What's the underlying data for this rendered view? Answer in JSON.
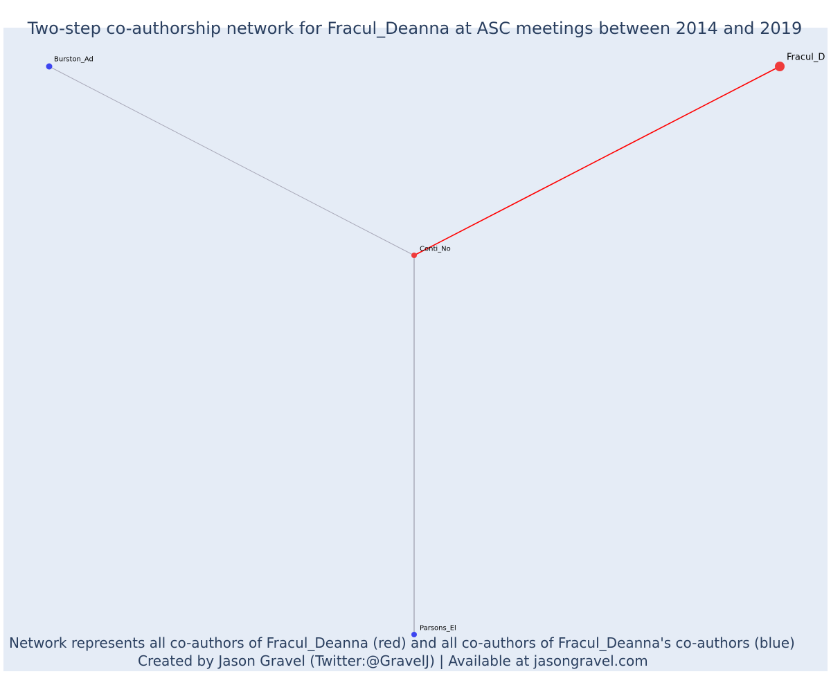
{
  "title": "Two-step co-authorship network for Fracul_Deanna at ASC meetings between 2014 and 2019",
  "captions": {
    "line1": "Network represents all co-authors of Fracul_Deanna (red) and all co-authors of Fracul_Deanna's co-authors (blue)",
    "line2": "Created by Jason Gravel (Twitter:@GravelJ) | Available at jasongravel.com"
  },
  "colors": {
    "focal": "#ef3b3b",
    "direct_coauthor": "#ef3b3b",
    "second_step": "#3d45f0",
    "focal_edge": "#ff0000",
    "other_edge": "#a8a8b8",
    "background": "#e5ecf6",
    "text": "#2a3f5f"
  },
  "network": {
    "nodes": [
      {
        "id": "fracul",
        "label": "Fracul_D",
        "group": "focal"
      },
      {
        "id": "conti",
        "label": "Conti_No",
        "group": "direct_coauthor"
      },
      {
        "id": "burston",
        "label": "Burston_Ad",
        "group": "second_step"
      },
      {
        "id": "parsons",
        "label": "Parsons_El",
        "group": "second_step"
      }
    ],
    "edges": [
      {
        "source": "fracul",
        "target": "conti",
        "type": "focal_edge"
      },
      {
        "source": "conti",
        "target": "burston",
        "type": "other_edge"
      },
      {
        "source": "conti",
        "target": "parsons",
        "type": "other_edge"
      }
    ]
  }
}
